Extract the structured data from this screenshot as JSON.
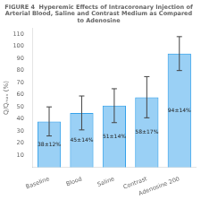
{
  "chart_data": {
    "type": "bar",
    "title": [
      "FIGURE 4  Hyperemic Effects of Intracoronary Injection of",
      "Arterial Blood, Saline and Contrast Medium as Compared",
      "to Adenosine"
    ],
    "ylabel": "Q/Qₘₐₓ (%)",
    "categories": [
      "Baseline",
      "Blood",
      "Saline",
      "Contrast",
      "Adenosine 200"
    ],
    "values": [
      38,
      45,
      51,
      58,
      94
    ],
    "errors": [
      12,
      14,
      14,
      17,
      14
    ],
    "value_labels": [
      "38±12%",
      "45±14%",
      "51±14%",
      "58±17%",
      "94±14%"
    ],
    "data_labels": true,
    "ylim": [
      0,
      115
    ],
    "yticks": [
      10,
      20,
      30,
      40,
      50,
      60,
      70,
      80,
      90,
      100,
      110
    ],
    "grid": false
  }
}
